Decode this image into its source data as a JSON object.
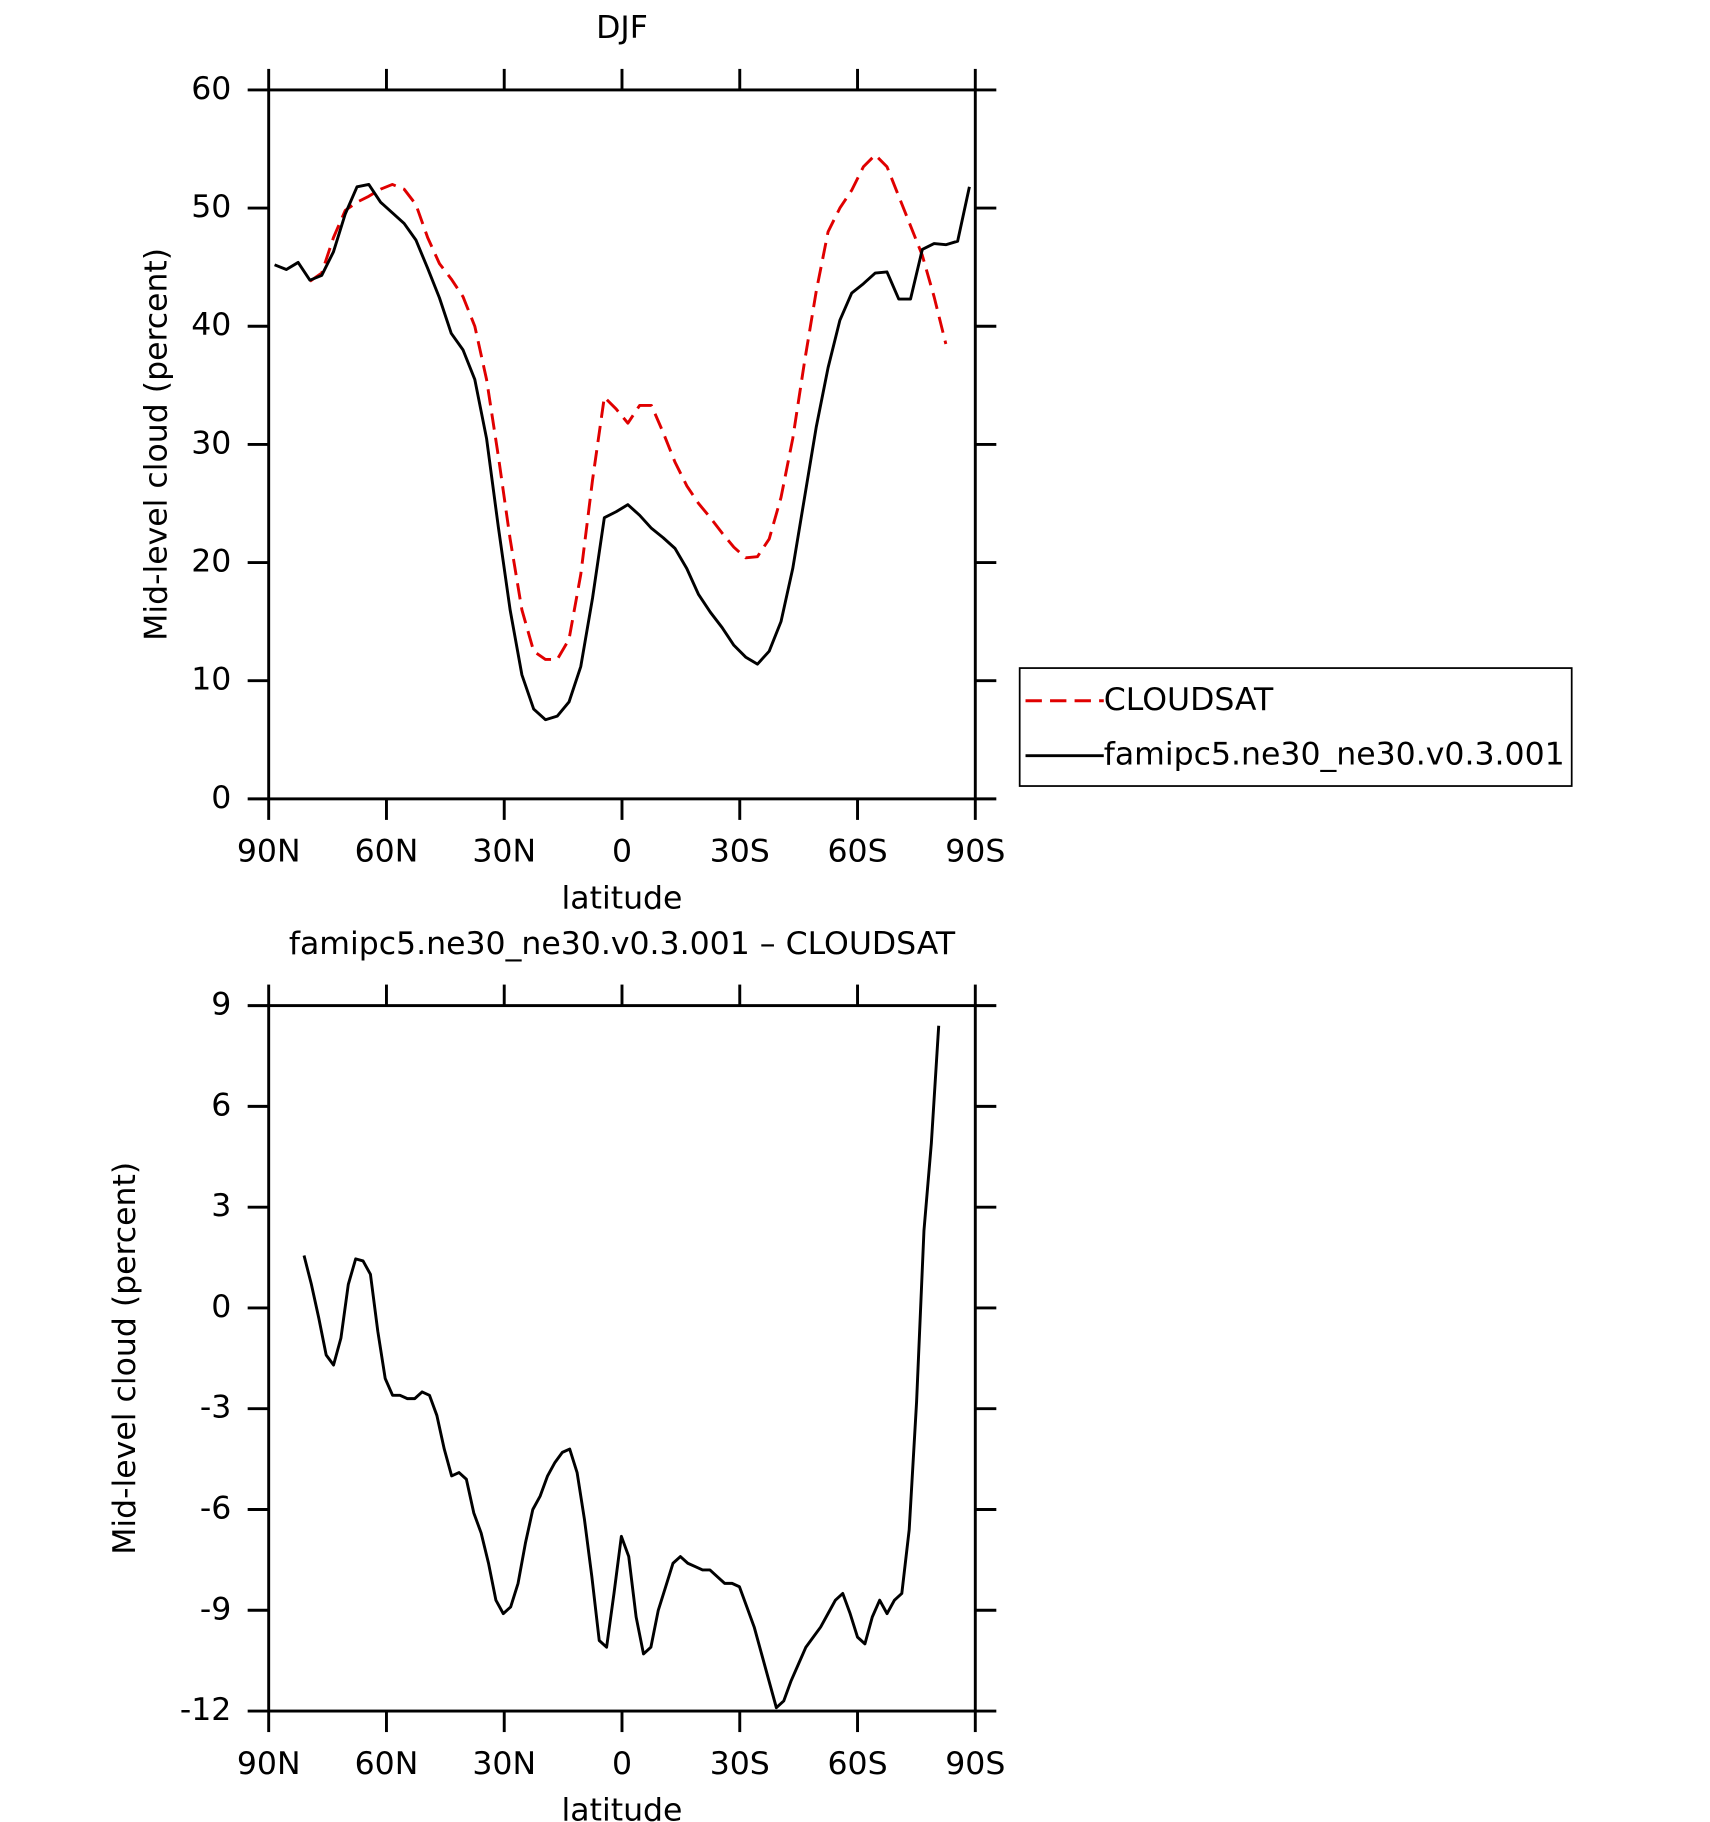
{
  "chart_data": [
    {
      "type": "line",
      "title": "DJF",
      "x_label": "latitude",
      "y_label": "Mid-level cloud (percent)",
      "x": [
        88.5,
        85.5,
        82.5,
        79.5,
        76.5,
        73.5,
        70.5,
        67.5,
        64.5,
        61.5,
        58.5,
        55.5,
        52.5,
        49.5,
        46.5,
        43.5,
        40.5,
        37.5,
        34.5,
        31.5,
        28.5,
        25.5,
        22.5,
        19.5,
        16.5,
        13.5,
        10.5,
        7.5,
        4.5,
        1.5,
        -1.5,
        -4.5,
        -7.5,
        -10.5,
        -13.5,
        -16.5,
        -19.5,
        -22.5,
        -25.5,
        -28.5,
        -31.5,
        -34.5,
        -37.5,
        -40.5,
        -43.5,
        -46.5,
        -49.5,
        -52.5,
        -55.5,
        -58.5,
        -61.5,
        -64.5,
        -67.5,
        -70.5,
        -73.5,
        -76.5,
        -79.5,
        -82.5,
        -85.5,
        -88.5
      ],
      "series": [
        {
          "name": "CLOUDSAT",
          "color": "#e00000",
          "line_style": "dashed",
          "values": [
            null,
            null,
            null,
            43.8,
            44.5,
            47.5,
            49.8,
            50.5,
            51.0,
            51.6,
            52.0,
            51.6,
            50.3,
            47.5,
            45.3,
            44.0,
            42.5,
            40.0,
            35.5,
            29.0,
            22.0,
            16.0,
            12.5,
            11.8,
            11.8,
            13.5,
            19.0,
            27.0,
            34.0,
            33.0,
            31.8,
            33.3,
            33.3,
            31.0,
            28.5,
            26.5,
            25.0,
            23.8,
            22.5,
            21.3,
            20.4,
            20.5,
            22.0,
            25.5,
            30.5,
            37.0,
            43.0,
            48.0,
            50.0,
            51.5,
            53.5,
            54.5,
            53.5,
            51.0,
            48.5,
            46.0,
            42.5,
            38.5,
            null,
            null
          ]
        },
        {
          "name": "famipc5.ne30_ne30.v0.3.001",
          "color": "#000000",
          "line_style": "solid",
          "values": [
            45.2,
            44.8,
            45.4,
            43.9,
            44.3,
            46.3,
            49.5,
            51.8,
            52.0,
            50.5,
            49.6,
            48.7,
            47.3,
            44.9,
            42.4,
            39.4,
            38.0,
            35.5,
            30.5,
            23.0,
            16.0,
            10.5,
            7.6,
            6.7,
            7.0,
            8.2,
            11.2,
            17.0,
            23.8,
            24.3,
            24.9,
            24.0,
            22.9,
            22.1,
            21.2,
            19.5,
            17.3,
            15.8,
            14.5,
            13.0,
            12.0,
            11.4,
            12.5,
            15.0,
            19.5,
            25.5,
            31.5,
            36.5,
            40.5,
            42.8,
            43.6,
            44.5,
            44.6,
            42.3,
            42.3,
            46.5,
            47.0,
            46.9,
            47.2,
            51.8
          ]
        }
      ],
      "xlim": [
        90,
        -90
      ],
      "xticks": [
        {
          "value": 90,
          "label": "90N"
        },
        {
          "value": 60,
          "label": "60N"
        },
        {
          "value": 30,
          "label": "30N"
        },
        0,
        {
          "value": -30,
          "label": "30S"
        },
        {
          "value": -60,
          "label": "60S"
        },
        {
          "value": -90,
          "label": "90S"
        }
      ],
      "ylim": [
        0,
        60
      ],
      "yticks": [
        0,
        10,
        20,
        30,
        40,
        50,
        60
      ],
      "legend": "right"
    },
    {
      "type": "line",
      "title": "famipc5.ne30_ne30.v0.3.001 – CLOUDSAT",
      "x_label": "latitude",
      "y_label": "Mid-level cloud (percent)",
      "x": [
        81,
        79.12,
        77.24,
        75.36,
        73.48,
        71.6,
        69.72,
        67.84,
        65.96,
        64.08,
        62.2,
        60.32,
        58.44,
        56.56,
        54.68,
        52.8,
        50.92,
        49.04,
        47.16,
        45.28,
        43.4,
        41.52,
        39.64,
        37.76,
        35.88,
        34,
        32.12,
        30.24,
        28.36,
        26.48,
        24.6,
        22.72,
        20.84,
        18.96,
        17.08,
        15.2,
        13.32,
        11.44,
        9.56,
        7.68,
        5.8,
        3.92,
        2.04,
        0.16,
        -1.72,
        -3.6,
        -5.48,
        -7.36,
        -9.24,
        -11.12,
        -13,
        -14.88,
        -16.76,
        -18.64,
        -20.52,
        -22.4,
        -24.28,
        -26.16,
        -28.04,
        -29.92,
        -31.8,
        -33.68,
        -35.56,
        -37.44,
        -39.32,
        -41.2,
        -43.08,
        -44.96,
        -46.84,
        -48.72,
        -50.6,
        -52.48,
        -54.36,
        -56.24,
        -58.12,
        -60,
        -61.88,
        -63.76,
        -65.64,
        -67.52,
        -69.4,
        -71.28,
        -73.16,
        -75.04,
        -76.92,
        -78.8,
        -80.68
      ],
      "series": [
        {
          "color": "#000000",
          "line_style": "solid",
          "values": [
            1.56,
            0.7,
            -0.3,
            -1.4,
            -1.7,
            -0.9,
            0.7,
            1.46,
            1.4,
            1.0,
            -0.7,
            -2.1,
            -2.6,
            -2.6,
            -2.7,
            -2.7,
            -2.5,
            -2.6,
            -3.2,
            -4.2,
            -5.0,
            -4.9,
            -5.1,
            -6.1,
            -6.7,
            -7.6,
            -8.7,
            -9.1,
            -8.9,
            -8.2,
            -7.0,
            -6.0,
            -5.6,
            -5.0,
            -4.6,
            -4.3,
            -4.2,
            -4.9,
            -6.3,
            -8.0,
            -9.9,
            -10.1,
            -8.5,
            -6.8,
            -7.4,
            -9.2,
            -10.3,
            -10.1,
            -9.0,
            -8.3,
            -7.6,
            -7.4,
            -7.6,
            -7.7,
            -7.8,
            -7.8,
            -8.0,
            -8.2,
            -8.2,
            -8.3,
            -8.9,
            -9.5,
            -10.3,
            -11.1,
            -11.9,
            -11.7,
            -11.1,
            -10.6,
            -10.1,
            -9.8,
            -9.5,
            -9.1,
            -8.7,
            -8.5,
            -9.1,
            -9.8,
            -10.0,
            -9.2,
            -8.7,
            -9.1,
            -8.7,
            -8.5,
            -6.6,
            -2.8,
            2.3,
            4.9,
            8.4
          ]
        }
      ],
      "xlim": [
        90,
        -90
      ],
      "xticks": [
        {
          "value": 90,
          "label": "90N"
        },
        {
          "value": 60,
          "label": "60N"
        },
        {
          "value": 30,
          "label": "30N"
        },
        0,
        {
          "value": -30,
          "label": "30S"
        },
        {
          "value": -60,
          "label": "60S"
        },
        {
          "value": -90,
          "label": "90S"
        }
      ],
      "ylim": [
        -12,
        9
      ],
      "yticks": [
        -12,
        -9,
        -6,
        -3,
        0,
        3,
        6,
        9
      ]
    }
  ]
}
